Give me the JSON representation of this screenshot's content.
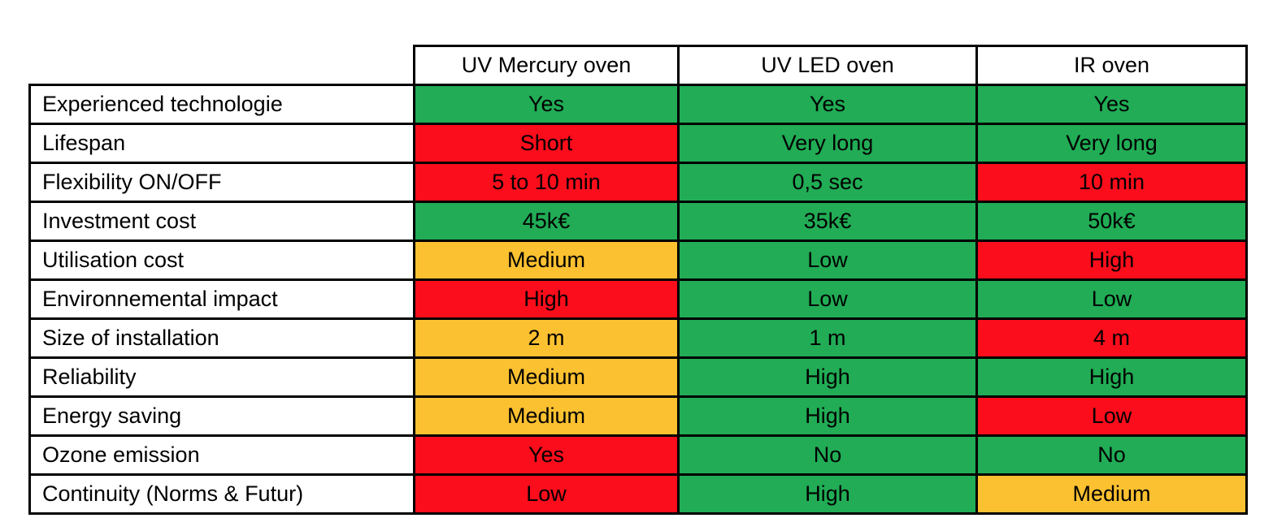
{
  "table": {
    "columns": [
      "UV Mercury oven",
      "UV LED oven",
      "IR oven"
    ],
    "rows": [
      {
        "label": "Experienced technologie",
        "cells": [
          {
            "text": "Yes",
            "status": "good"
          },
          {
            "text": "Yes",
            "status": "good"
          },
          {
            "text": "Yes",
            "status": "good"
          }
        ]
      },
      {
        "label": "Lifespan",
        "cells": [
          {
            "text": "Short",
            "status": "bad"
          },
          {
            "text": "Very long",
            "status": "good"
          },
          {
            "text": "Very long",
            "status": "good"
          }
        ]
      },
      {
        "label": "Flexibility ON/OFF",
        "cells": [
          {
            "text": "5 to 10 min",
            "status": "bad"
          },
          {
            "text": "0,5 sec",
            "status": "good"
          },
          {
            "text": "10 min",
            "status": "bad"
          }
        ]
      },
      {
        "label": "Investment cost",
        "cells": [
          {
            "text": "45k€",
            "status": "good"
          },
          {
            "text": "35k€",
            "status": "good"
          },
          {
            "text": "50k€",
            "status": "good"
          }
        ]
      },
      {
        "label": "Utilisation cost",
        "cells": [
          {
            "text": "Medium",
            "status": "medium"
          },
          {
            "text": "Low",
            "status": "good"
          },
          {
            "text": "High",
            "status": "bad"
          }
        ]
      },
      {
        "label": "Environnemental impact",
        "cells": [
          {
            "text": "High",
            "status": "bad"
          },
          {
            "text": "Low",
            "status": "good"
          },
          {
            "text": "Low",
            "status": "good"
          }
        ]
      },
      {
        "label": "Size of installation",
        "cells": [
          {
            "text": "2 m",
            "status": "medium"
          },
          {
            "text": "1 m",
            "status": "good"
          },
          {
            "text": "4 m",
            "status": "bad"
          }
        ]
      },
      {
        "label": "Reliability",
        "cells": [
          {
            "text": "Medium",
            "status": "medium"
          },
          {
            "text": "High",
            "status": "good"
          },
          {
            "text": "High",
            "status": "good"
          }
        ]
      },
      {
        "label": "Energy saving",
        "cells": [
          {
            "text": "Medium",
            "status": "medium"
          },
          {
            "text": "High",
            "status": "good"
          },
          {
            "text": "Low",
            "status": "bad"
          }
        ]
      },
      {
        "label": "Ozone emission",
        "cells": [
          {
            "text": "Yes",
            "status": "bad"
          },
          {
            "text": "No",
            "status": "good"
          },
          {
            "text": "No",
            "status": "good"
          }
        ]
      },
      {
        "label": "Continuity (Norms & Futur)",
        "cells": [
          {
            "text": "Low",
            "status": "bad"
          },
          {
            "text": "High",
            "status": "good"
          },
          {
            "text": "Medium",
            "status": "medium"
          }
        ]
      }
    ]
  },
  "colors": {
    "good": "#21AC55",
    "bad": "#FB0D1B",
    "medium": "#FCC130"
  }
}
